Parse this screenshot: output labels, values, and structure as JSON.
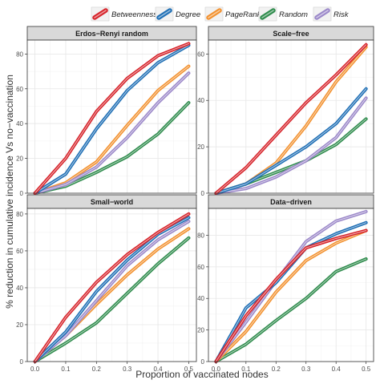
{
  "figure": {
    "xlabel": "Proportion of vaccinated nodes",
    "ylabel": "% reduction in cumulative incidence Vs no−vaccination"
  },
  "legend": {
    "position": "top",
    "items": [
      {
        "name": "Betweenness",
        "color": "#d6232a"
      },
      {
        "name": "Degree",
        "color": "#1f6fb5"
      },
      {
        "name": "PageRank",
        "color": "#f2912f"
      },
      {
        "name": "Random",
        "color": "#2e8b4c"
      },
      {
        "name": "Risk",
        "color": "#9b88c9"
      }
    ]
  },
  "chart_data": [
    {
      "type": "line",
      "title": "Erdos−Renyi random",
      "x": [
        0.0,
        0.1,
        0.2,
        0.3,
        0.4,
        0.5
      ],
      "ylim": [
        0,
        88
      ],
      "yticks": [
        0,
        20,
        40,
        60,
        80
      ],
      "grid": true,
      "series": [
        {
          "name": "Betweenness",
          "values": [
            0,
            20,
            47,
            66,
            79,
            86
          ]
        },
        {
          "name": "Degree",
          "values": [
            0,
            11,
            37,
            59,
            75,
            85
          ]
        },
        {
          "name": "PageRank",
          "values": [
            0,
            6,
            18,
            39,
            59,
            73
          ]
        },
        {
          "name": "Random",
          "values": [
            0,
            4,
            12,
            21,
            34,
            52
          ]
        },
        {
          "name": "Risk",
          "values": [
            0,
            5,
            15,
            32,
            52,
            69
          ]
        }
      ]
    },
    {
      "type": "line",
      "title": "Scale−free",
      "x": [
        0.0,
        0.1,
        0.2,
        0.3,
        0.4,
        0.5
      ],
      "ylim": [
        0,
        66
      ],
      "yticks": [
        0,
        20,
        40,
        60
      ],
      "grid": true,
      "series": [
        {
          "name": "Betweenness",
          "values": [
            0,
            11,
            25,
            39,
            51,
            64
          ]
        },
        {
          "name": "Degree",
          "values": [
            0,
            4,
            12,
            20,
            30,
            45
          ]
        },
        {
          "name": "PageRank",
          "values": [
            0,
            4,
            13,
            29,
            48,
            63
          ]
        },
        {
          "name": "Random",
          "values": [
            0,
            4,
            9,
            14,
            21,
            32
          ]
        },
        {
          "name": "Risk",
          "values": [
            0,
            2,
            7,
            14,
            24,
            41
          ]
        }
      ]
    },
    {
      "type": "line",
      "title": "Small−world",
      "x": [
        0.0,
        0.1,
        0.2,
        0.3,
        0.4,
        0.5
      ],
      "ylim": [
        0,
        83
      ],
      "yticks": [
        0,
        20,
        40,
        60,
        80
      ],
      "grid": true,
      "series": [
        {
          "name": "Betweenness",
          "values": [
            0,
            24,
            43,
            58,
            70,
            80
          ]
        },
        {
          "name": "Degree",
          "values": [
            0,
            16,
            38,
            55,
            69,
            78
          ]
        },
        {
          "name": "PageRank",
          "values": [
            0,
            14,
            31,
            47,
            61,
            72
          ]
        },
        {
          "name": "Random",
          "values": [
            0,
            10,
            21,
            37,
            53,
            67
          ]
        },
        {
          "name": "Risk",
          "values": [
            0,
            14,
            33,
            52,
            66,
            76
          ]
        }
      ]
    },
    {
      "type": "line",
      "title": "Data−driven",
      "x": [
        0.0,
        0.1,
        0.2,
        0.3,
        0.4,
        0.5
      ],
      "ylim": [
        0,
        97
      ],
      "yticks": [
        0,
        20,
        40,
        60,
        80
      ],
      "grid": true,
      "series": [
        {
          "name": "Betweenness",
          "values": [
            0,
            29,
            52,
            72,
            78,
            83
          ]
        },
        {
          "name": "Degree",
          "values": [
            0,
            34,
            50,
            72,
            81,
            88
          ]
        },
        {
          "name": "PageRank",
          "values": [
            0,
            19,
            44,
            64,
            75,
            83
          ]
        },
        {
          "name": "Random",
          "values": [
            0,
            11,
            26,
            40,
            57,
            65
          ]
        },
        {
          "name": "Risk",
          "values": [
            0,
            25,
            51,
            76,
            89,
            95
          ]
        }
      ]
    }
  ]
}
